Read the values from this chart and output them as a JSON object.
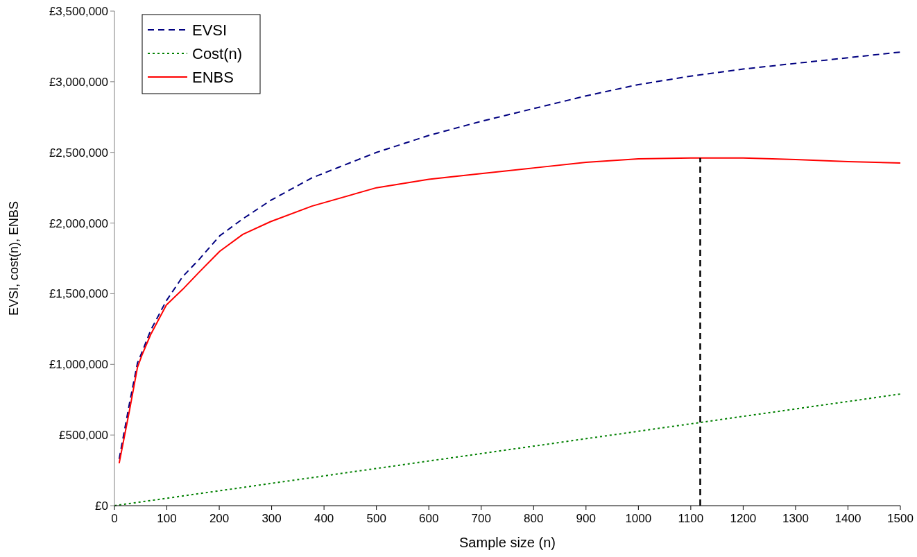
{
  "chart_data": {
    "type": "line",
    "xlabel": "Sample size (n)",
    "ylabel": "EVSI, cost(n), ENBS",
    "xlim": [
      0,
      1500
    ],
    "xticks": [
      0,
      100,
      200,
      300,
      400,
      500,
      600,
      700,
      800,
      900,
      1000,
      1100,
      1200,
      1300,
      1400,
      1500
    ],
    "ylim": [
      0,
      3500000
    ],
    "yticks": [
      {
        "value": 0,
        "label": "£0"
      },
      {
        "value": 500000,
        "label": "£500,000"
      },
      {
        "value": 1000000,
        "label": "£1,000,000"
      },
      {
        "value": 1500000,
        "label": "£1,500,000"
      },
      {
        "value": 2000000,
        "label": "£2,000,000"
      },
      {
        "value": 2500000,
        "label": "£2,500,000"
      },
      {
        "value": 3000000,
        "label": "£3,000,000"
      },
      {
        "value": 3500000,
        "label": "£3,500,000"
      }
    ],
    "grid": false,
    "legend": "top left",
    "series": [
      {
        "name": "EVSI",
        "color": "#000080",
        "line_style": "dashed",
        "x": [
          9,
          29,
          44,
          53,
          69,
          99,
          130,
          161,
          201,
          245,
          298,
          377,
          500,
          600,
          700,
          800,
          900,
          1000,
          1100,
          1200,
          1300,
          1400,
          1500
        ],
        "values": [
          330000,
          730000,
          1010000,
          1090000,
          1240000,
          1450000,
          1620000,
          1740000,
          1910000,
          2030000,
          2160000,
          2320000,
          2500000,
          2620000,
          2720000,
          2810000,
          2900000,
          2980000,
          3040000,
          3090000,
          3130000,
          3170000,
          3210000
        ]
      },
      {
        "name": "Cost(n)",
        "color": "#008000",
        "line_style": "dotted",
        "x": [
          0,
          1500
        ],
        "values": [
          0,
          790000
        ]
      },
      {
        "name": "ENBS",
        "color": "#ff0000",
        "line_style": "solid",
        "x": [
          9,
          29,
          44,
          53,
          69,
          99,
          130,
          161,
          201,
          245,
          298,
          377,
          500,
          600,
          700,
          800,
          900,
          1000,
          1100,
          1200,
          1300,
          1400,
          1500
        ],
        "values": [
          300000,
          680000,
          980000,
          1070000,
          1210000,
          1420000,
          1530000,
          1650000,
          1800000,
          1920000,
          2010000,
          2120000,
          2250000,
          2310000,
          2350000,
          2390000,
          2430000,
          2455000,
          2460000,
          2460000,
          2450000,
          2435000,
          2425000
        ]
      },
      {
        "color": "#000000",
        "line_style": "dashed",
        "x": [
          1118,
          1118
        ],
        "values": [
          0,
          2460000
        ]
      }
    ]
  }
}
